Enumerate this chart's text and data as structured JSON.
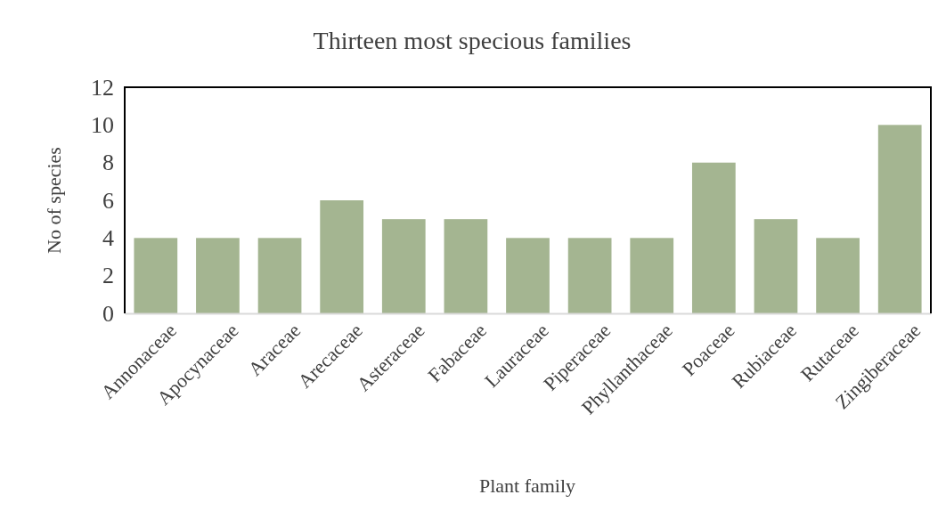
{
  "chart_data": {
    "type": "bar",
    "title": "Thirteen most specious families",
    "xlabel": "Plant family",
    "ylabel": "No of species",
    "categories": [
      "Annonaceae",
      "Apocynaceae",
      "Araceae",
      "Arecaceae",
      "Asteraceae",
      "Fabaceae",
      "Lauraceae",
      "Piperaceae",
      "Phyllanthaceae",
      "Poaceae",
      "Rubiaceae",
      "Rutaceae",
      "Zingiberaceae"
    ],
    "values": [
      4,
      4,
      4,
      6,
      5,
      5,
      4,
      4,
      4,
      8,
      5,
      4,
      10
    ],
    "color": "#a4b591",
    "ylim": [
      0,
      12
    ],
    "yticks": [
      0,
      2,
      4,
      6,
      8,
      10,
      12
    ],
    "grid": false
  }
}
